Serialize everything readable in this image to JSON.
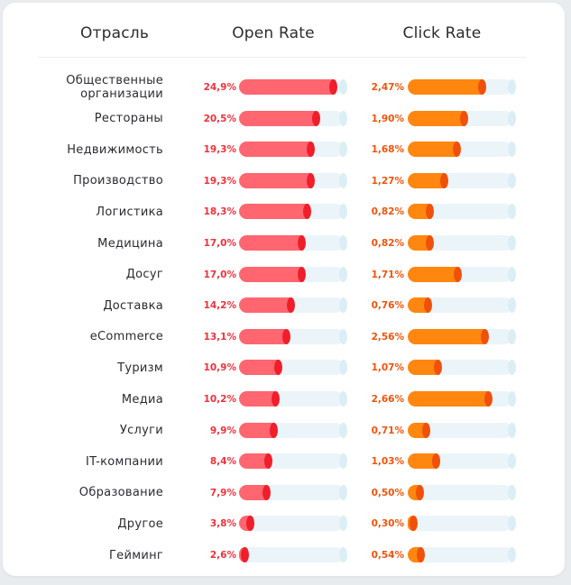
{
  "headers": {
    "industry": "Отрасль",
    "open_rate": "Open Rate",
    "click_rate": "Click Rate"
  },
  "colors": {
    "open_fill": "#ff6670",
    "open_accent": "#f01e2a",
    "click_fill": "#ff8710",
    "click_accent": "#f0500a",
    "track": "#ebf5f9"
  },
  "chart_data": {
    "type": "bar",
    "orientation": "horizontal",
    "title": "",
    "categories": [
      "Общественные\nорганизации",
      "Рестораны",
      "Недвижимость",
      "Производство",
      "Логистика",
      "Медицина",
      "Досуг",
      "Доставка",
      "eCommerce",
      "Туризм",
      "Медиа",
      "Услуги",
      "IT-компании",
      "Образование",
      "Другое",
      "Гейминг"
    ],
    "series": [
      {
        "name": "Open Rate",
        "values": [
          24.9,
          20.5,
          19.3,
          19.3,
          18.3,
          17.0,
          17.0,
          14.2,
          13.1,
          10.9,
          10.2,
          9.9,
          8.4,
          7.9,
          3.8,
          2.6
        ],
        "labels": [
          "24,9%",
          "20,5%",
          "19,3%",
          "19,3%",
          "18,3%",
          "17,0%",
          "17,0%",
          "14,2%",
          "13,1%",
          "10,9%",
          "10,2%",
          "9,9%",
          "8,4%",
          "7,9%",
          "3,8%",
          "2,6%"
        ],
        "max": 26.5
      },
      {
        "name": "Click Rate",
        "values": [
          2.47,
          1.9,
          1.68,
          1.27,
          0.82,
          0.82,
          1.71,
          0.76,
          2.56,
          1.07,
          2.66,
          0.71,
          1.03,
          0.5,
          0.3,
          0.54
        ],
        "labels": [
          "2,47%",
          "1,90%",
          "1,68%",
          "1,27%",
          "0,82%",
          "0,82%",
          "1,71%",
          "0,76%",
          "2,56%",
          "1,07%",
          "2,66%",
          "0,71%",
          "1,03%",
          "0,50%",
          "0,30%",
          "0,54%"
        ],
        "max": 3.3
      }
    ]
  }
}
